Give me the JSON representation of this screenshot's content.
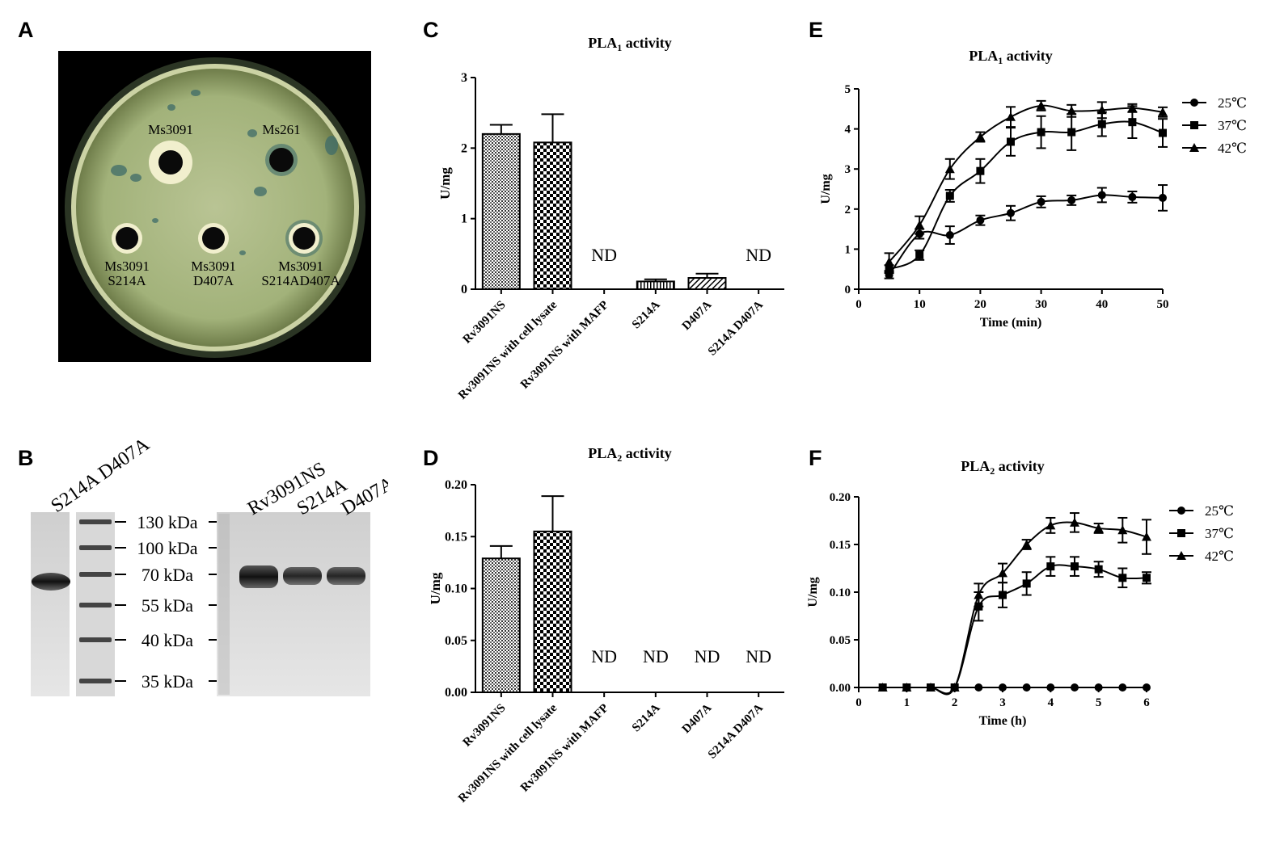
{
  "panels": {
    "A": "A",
    "B": "B",
    "C": "C",
    "D": "D",
    "E": "E",
    "F": "F"
  },
  "plate": {
    "wells": [
      {
        "label1": "Ms3091",
        "label2": ""
      },
      {
        "label1": "Ms261",
        "label2": ""
      },
      {
        "label1": "Ms3091",
        "label2": "S214A"
      },
      {
        "label1": "Ms3091",
        "label2": "D407A"
      },
      {
        "label1": "Ms3091",
        "label2": "S214AD407A"
      }
    ],
    "colors": {
      "agar": "#9fb07a",
      "rim": "#3a4a30",
      "halo": "#efeecb",
      "dye": "#2d5a5a"
    }
  },
  "gel": {
    "lane_left_label": "S214A D407A",
    "lane_right_labels": [
      "Rv3091NS",
      "S214A",
      "D407A"
    ],
    "markers": [
      "130 kDa",
      "100 kDa",
      "70 kDa",
      "55 kDa",
      "40 kDa",
      "35 kDa"
    ],
    "band_marker_index": 2
  },
  "chart_data": [
    {
      "id": "C",
      "type": "bar",
      "title": "PLA1 activity",
      "title_base": "PLA",
      "title_sub": "1",
      "title_rest": " activity",
      "ylabel": "U/mg",
      "ylim": [
        0,
        3
      ],
      "yticks": [
        "0",
        "1",
        "2",
        "3"
      ],
      "categories": [
        "Rv3091NS",
        "Rv3091NS with cell lysate",
        "Rv3091NS with MAFP",
        "S214A",
        "D407A",
        "S214A D407A"
      ],
      "values": [
        2.2,
        2.08,
        null,
        0.11,
        0.16,
        null
      ],
      "errors": [
        0.13,
        0.4,
        null,
        0.03,
        0.06,
        null
      ],
      "labels": [
        "",
        "",
        "ND",
        "",
        "",
        "ND"
      ],
      "patterns": [
        "dots",
        "checker",
        "",
        "vstripe",
        "diag",
        ""
      ]
    },
    {
      "id": "D",
      "type": "bar",
      "title": "PLA2 activity",
      "title_base": "PLA",
      "title_sub": "2",
      "title_rest": " activity",
      "ylabel": "U/mg",
      "ylim": [
        0,
        0.2
      ],
      "yticks": [
        "0.00",
        "0.05",
        "0.10",
        "0.15",
        "0.20"
      ],
      "categories": [
        "Rv3091NS",
        "Rv3091NS with cell lysate",
        "Rv3091NS with MAFP",
        "S214A",
        "D407A",
        "S214A D407A"
      ],
      "values": [
        0.129,
        0.155,
        null,
        null,
        null,
        null
      ],
      "errors": [
        0.012,
        0.034,
        null,
        null,
        null,
        null
      ],
      "labels": [
        "",
        "",
        "ND",
        "ND",
        "ND",
        "ND"
      ],
      "patterns": [
        "dots",
        "checker",
        "",
        "",
        "",
        ""
      ]
    },
    {
      "id": "E",
      "type": "line",
      "title": "PLA1 activity",
      "title_base": "PLA",
      "title_sub": "1",
      "title_rest": " activity",
      "xlabel": "Time (min)",
      "ylabel": "U/mg",
      "xlim": [
        0,
        50
      ],
      "ylim": [
        0,
        5
      ],
      "xticks": [
        "0",
        "10",
        "20",
        "30",
        "40",
        "50"
      ],
      "yticks": [
        "0",
        "1",
        "2",
        "3",
        "4",
        "5"
      ],
      "x": [
        5,
        10,
        15,
        20,
        25,
        30,
        35,
        40,
        45,
        50
      ],
      "series": [
        {
          "name": "25℃",
          "marker": "circle",
          "values": [
            0.35,
            1.38,
            1.35,
            1.72,
            1.9,
            2.18,
            2.22,
            2.35,
            2.3,
            2.28
          ],
          "errors": [
            0.08,
            0.12,
            0.22,
            0.12,
            0.18,
            0.14,
            0.12,
            0.18,
            0.14,
            0.32
          ]
        },
        {
          "name": "37℃",
          "marker": "square",
          "values": [
            0.5,
            0.85,
            2.33,
            2.95,
            3.68,
            3.92,
            3.92,
            4.12,
            4.17,
            3.9
          ],
          "errors": [
            0.1,
            0.12,
            0.15,
            0.3,
            0.35,
            0.4,
            0.45,
            0.3,
            0.4,
            0.35
          ]
        },
        {
          "name": "42℃",
          "marker": "triangle",
          "values": [
            0.68,
            1.6,
            3.0,
            3.8,
            4.3,
            4.58,
            4.45,
            4.47,
            4.52,
            4.42
          ],
          "errors": [
            0.22,
            0.22,
            0.25,
            0.12,
            0.25,
            0.12,
            0.15,
            0.2,
            0.1,
            0.12
          ]
        }
      ]
    },
    {
      "id": "F",
      "type": "line",
      "title": "PLA2 activity",
      "title_base": "PLA",
      "title_sub": "2",
      "title_rest": " activity",
      "xlabel": "Time (h)",
      "ylabel": "U/mg",
      "xlim": [
        0,
        6
      ],
      "ylim": [
        0,
        0.2
      ],
      "xticks": [
        "0",
        "1",
        "2",
        "3",
        "4",
        "5",
        "6"
      ],
      "yticks": [
        "0.00",
        "0.05",
        "0.10",
        "0.15",
        "0.20"
      ],
      "x": [
        0.5,
        1,
        1.5,
        2,
        2.5,
        3,
        3.5,
        4,
        4.5,
        5,
        5.5,
        6
      ],
      "series": [
        {
          "name": "25℃",
          "marker": "circle",
          "values": [
            0,
            0,
            0,
            0,
            0,
            0,
            0,
            0,
            0,
            0,
            0,
            0
          ],
          "errors": [
            0,
            0,
            0,
            0,
            0,
            0,
            0,
            0,
            0,
            0,
            0,
            0
          ]
        },
        {
          "name": "37℃",
          "marker": "square",
          "values": [
            0,
            0,
            0,
            0,
            0.085,
            0.097,
            0.109,
            0.127,
            0.127,
            0.124,
            0.115,
            0.115
          ],
          "errors": [
            0,
            0,
            0,
            0,
            0.015,
            0.013,
            0.012,
            0.01,
            0.01,
            0.008,
            0.01,
            0.006
          ]
        },
        {
          "name": "42℃",
          "marker": "triangle",
          "values": [
            0,
            0,
            0,
            0,
            0.097,
            0.12,
            0.15,
            0.17,
            0.173,
            0.167,
            0.165,
            0.158
          ],
          "errors": [
            0,
            0,
            0,
            0,
            0.012,
            0.01,
            0.005,
            0.008,
            0.01,
            0.005,
            0.013,
            0.018
          ]
        }
      ]
    }
  ]
}
